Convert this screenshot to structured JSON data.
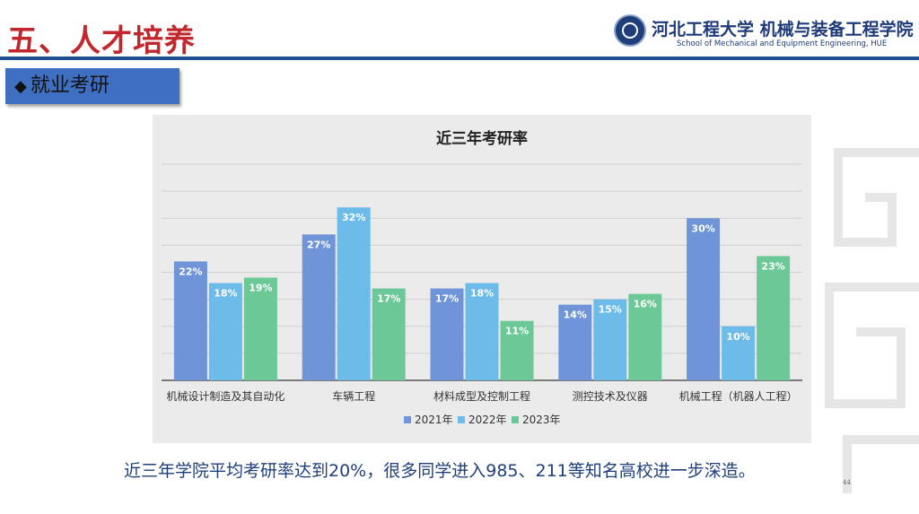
{
  "slide": {
    "title": "五、人才培养",
    "school_name_cn": "河北工程大学 机械与装备工程学院",
    "school_name_en": "School of Mechanical and Equipment Engineering, HUE",
    "section_label": "就业考研",
    "caption": "近三年学院平均考研率达到20%，很多同学进入985、211等知名高校进一步深造。",
    "page_number": "44"
  },
  "icons": {
    "section_marker": "diamond-icon",
    "logo": "university-seal-icon"
  },
  "colors": {
    "title_red": "#c0282d",
    "brand_blue": "#1f4e8c",
    "series_2021": "#6f95d8",
    "series_2022": "#6dbbe9",
    "series_2023": "#6cc997"
  },
  "chart_data": {
    "type": "bar",
    "title": "近三年考研率",
    "categories": [
      "机械设计制造及其自动化",
      "车辆工程",
      "材料成型及控制工程",
      "测控技术及仪器",
      "机械工程（机器人工程）"
    ],
    "series": [
      {
        "name": "2021年",
        "values": [
          22,
          27,
          17,
          14,
          30
        ],
        "labels": [
          "22%",
          "27%",
          "17%",
          "14%",
          "30%"
        ]
      },
      {
        "name": "2022年",
        "values": [
          18,
          32,
          18,
          15,
          10
        ],
        "labels": [
          "18%",
          "32%",
          "18%",
          "15%",
          "10%"
        ]
      },
      {
        "name": "2023年",
        "values": [
          19,
          17,
          11,
          16,
          23
        ],
        "labels": [
          "19%",
          "17%",
          "11%",
          "16%",
          "23%"
        ]
      }
    ],
    "ylim": [
      0,
      40
    ],
    "grid": true,
    "legend": "bottom"
  }
}
